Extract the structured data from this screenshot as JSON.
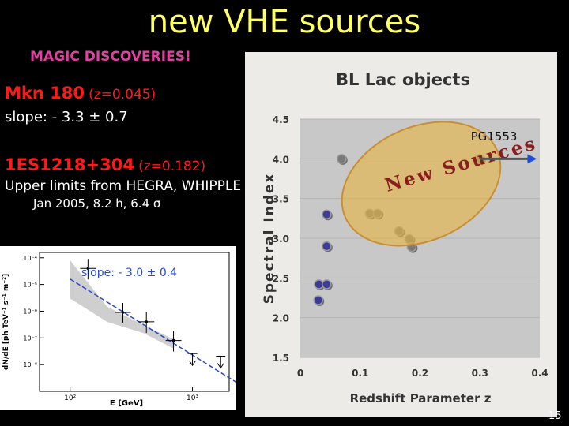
{
  "slide": {
    "title": "new VHE sources",
    "subtitle": "MAGIC DISCOVERIES!",
    "page_number": "15"
  },
  "sources": {
    "mkn180": {
      "name": "Mkn 180",
      "z": "(z=0.045)",
      "slope": "slope: - 3.3 ± 0.7"
    },
    "es1218": {
      "name": "1ES1218+304",
      "z": "(z=0.182)",
      "upper_limits": "Upper limits from HEGRA, WHIPPLE",
      "observation": "Jan 2005, 8.2 h, 6.4 σ"
    }
  },
  "chart_data": [
    {
      "type": "scatter",
      "title": "BL Lac objects",
      "xlabel": "Redshift Parameter z",
      "ylabel": "Spectral Index",
      "xlim": [
        0,
        0.4
      ],
      "ylim": [
        1.5,
        4.5
      ],
      "xticks": [
        "0",
        "0.1",
        "0.2",
        "0.3",
        "0.4"
      ],
      "yticks": [
        "1.5",
        "2.0",
        "2.5",
        "3.0",
        "3.5",
        "4.0",
        "4.5"
      ],
      "grid": true,
      "annotations": [
        "PG1553",
        "New Sources"
      ],
      "points": [
        {
          "x": 0.03,
          "y": 2.22
        },
        {
          "x": 0.031,
          "y": 2.42
        },
        {
          "x": 0.044,
          "y": 2.42
        },
        {
          "x": 0.044,
          "y": 2.9
        },
        {
          "x": 0.044,
          "y": 3.3
        },
        {
          "x": 0.069,
          "y": 4.0
        },
        {
          "x": 0.116,
          "y": 3.31
        },
        {
          "x": 0.129,
          "y": 3.31
        },
        {
          "x": 0.165,
          "y": 3.09
        },
        {
          "x": 0.182,
          "y": 2.99
        },
        {
          "x": 0.186,
          "y": 2.89
        },
        {
          "x": 0.3,
          "y": 4.0
        }
      ],
      "highlight_points": [
        4
      ],
      "pg1553_arrow": {
        "x_from": 0.3,
        "x_to": 0.39,
        "y": 4.0
      },
      "colors": {
        "plot_bg": "#c8c8c8",
        "frame_bg": "#ecebe7",
        "marker_fill": "#3c3c96",
        "marker_edge": "#9a9a9a",
        "ellipse_fill": "#e6b446",
        "ellipse_edge": "#c89032",
        "text_new_sources": "#8a1e1e",
        "arrow": "#555555",
        "arrow_head": "#1f4fd6"
      }
    },
    {
      "type": "scatter",
      "xlabel": "E [GeV]",
      "ylabel": "dN/dE [ph TeV⁻¹ s⁻¹ m⁻²]",
      "xscale": "log",
      "yscale": "log",
      "xticks": [
        "10²",
        "10³"
      ],
      "yticks": [
        "10⁻⁴",
        "10⁻⁵",
        "10⁻⁶",
        "10⁻⁷",
        "10⁻⁸"
      ],
      "annotation": "slope: - 3.0 ± 0.4",
      "points": [
        {
          "x": 140,
          "y": 4e-05,
          "err": [
            0.3,
            0.3
          ]
        },
        {
          "x": 270,
          "y": 9e-07,
          "err": [
            0.3,
            0.3
          ]
        },
        {
          "x": 420,
          "y": 4e-07,
          "err": [
            0.3,
            0.3
          ]
        },
        {
          "x": 700,
          "y": 8e-08,
          "err": [
            0.3,
            0.3
          ]
        }
      ],
      "upper_limits": [
        {
          "x": 1000,
          "y": 1.5e-08
        },
        {
          "x": 1700,
          "y": 1.2e-08
        }
      ],
      "fit_line": {
        "x": [
          100,
          3000
        ],
        "y": [
          1.6e-05,
          1e-09
        ]
      },
      "colors": {
        "plot_bg": "#ffffff",
        "band": "#cfcfcf",
        "fit": "#2848d8",
        "annotation": "#2848d8"
      }
    }
  ]
}
